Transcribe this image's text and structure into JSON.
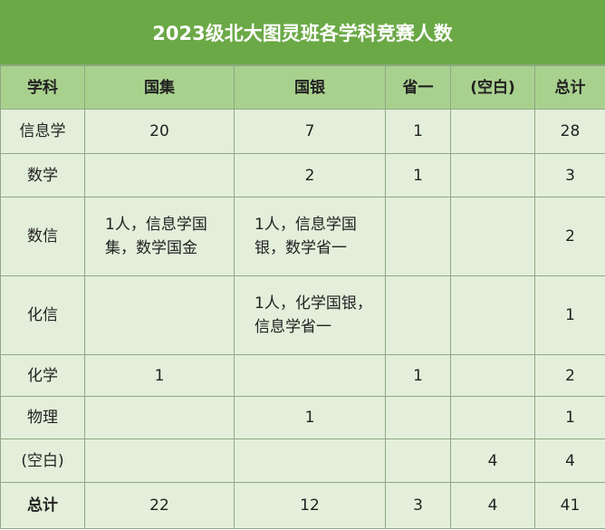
{
  "title": "2023级北大图灵班各学科竞赛人数",
  "headers": [
    "学科",
    "国集",
    "国银",
    "省一",
    "(空白)",
    "总计"
  ],
  "rows": [
    {
      "subject": "信息学",
      "guoji": "20",
      "guoyin": "7",
      "shengyi": "1",
      "blank": "",
      "total": "28"
    },
    {
      "subject": "数学",
      "guoji": "",
      "guoyin": "2",
      "shengyi": "1",
      "blank": "",
      "total": "3"
    },
    {
      "subject": "数信",
      "guoji": "1人，信息学国集，数学国金",
      "guoyin": "1人，信息学国银，数学省一",
      "shengyi": "",
      "blank": "",
      "total": "2"
    },
    {
      "subject": "化信",
      "guoji": "",
      "guoyin": "1人，化学国银，信息学省一",
      "shengyi": "",
      "blank": "",
      "total": "1"
    },
    {
      "subject": "化学",
      "guoji": "1",
      "guoyin": "",
      "shengyi": "1",
      "blank": "",
      "total": "2"
    },
    {
      "subject": "物理",
      "guoji": "",
      "guoyin": "1",
      "shengyi": "",
      "blank": "",
      "total": "1"
    },
    {
      "subject": "(空白)",
      "guoji": "",
      "guoyin": "",
      "shengyi": "",
      "blank": "4",
      "total": "4"
    }
  ],
  "totals": {
    "subject": "总计",
    "guoji": "22",
    "guoyin": "12",
    "shengyi": "3",
    "blank": "4",
    "total": "41"
  },
  "colors": {
    "title_bg": "#6ba946",
    "header_bg": "#a9d18e",
    "body_bg": "#e3efda"
  }
}
